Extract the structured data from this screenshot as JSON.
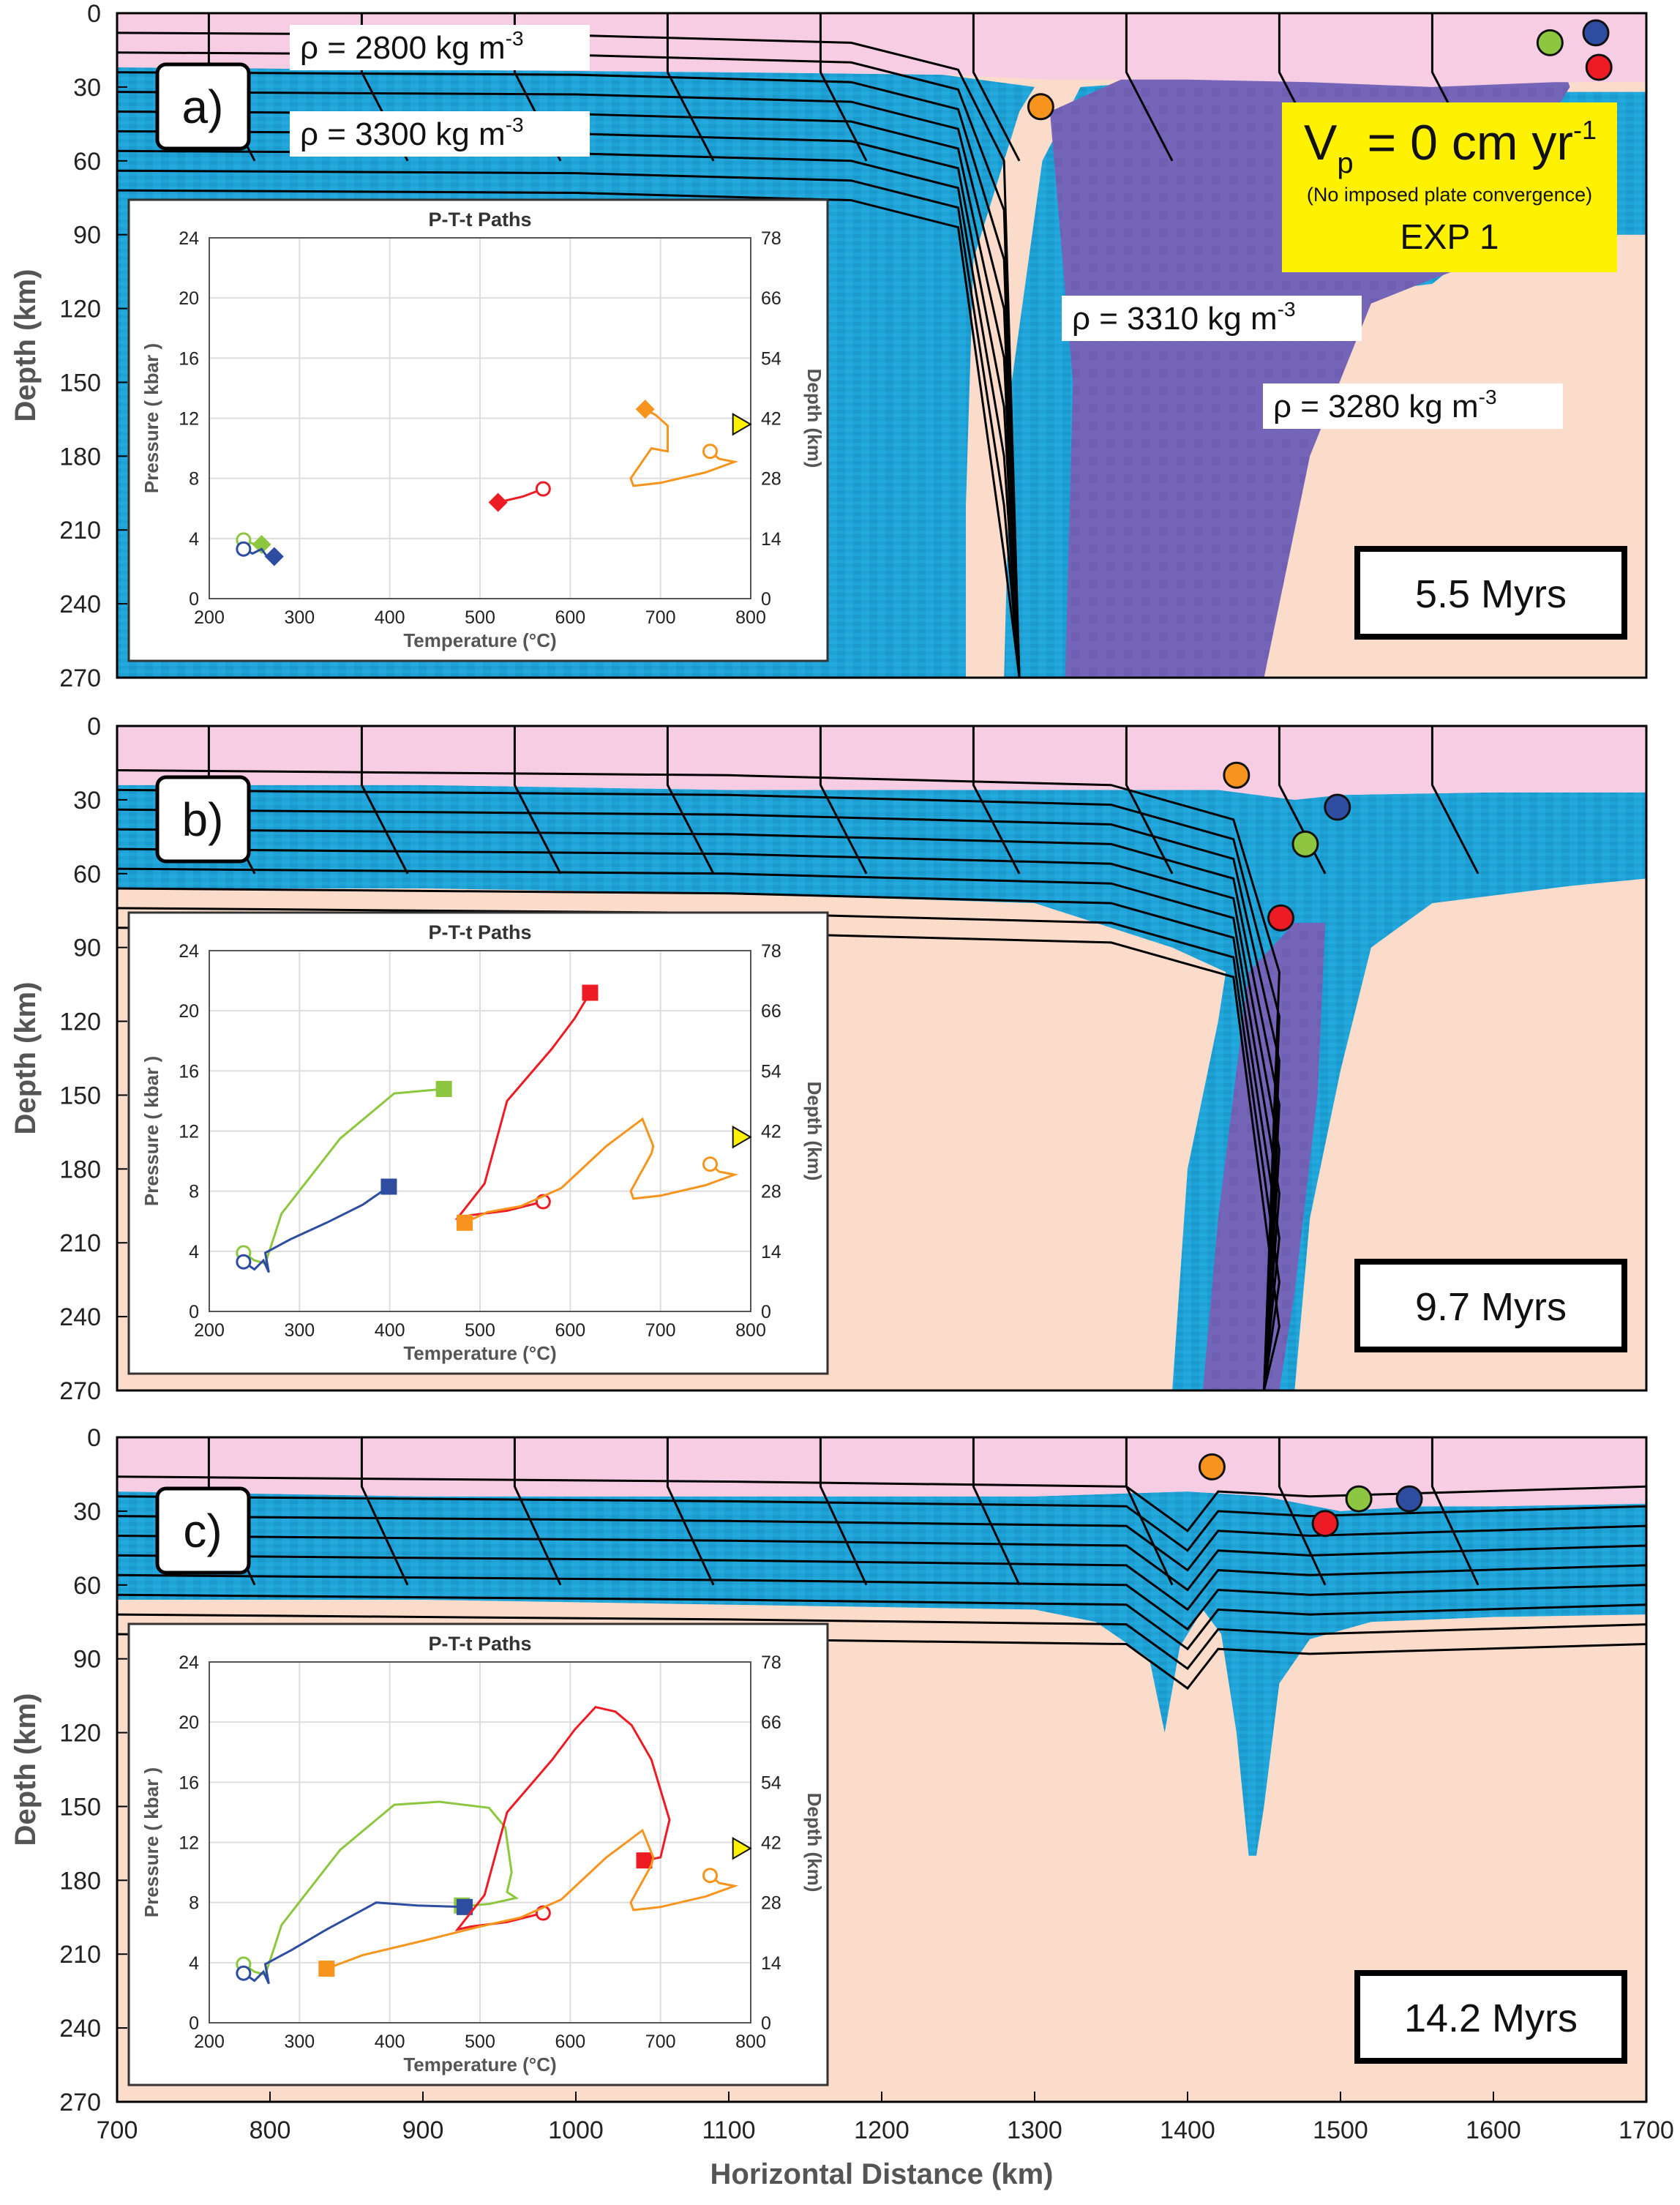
{
  "colors": {
    "upper_crust": "#f7cde4",
    "lithosphere": "#1fa2d6",
    "asthenosphere": "#fbdccb",
    "slab": "#7565b8",
    "weak_zone": "#e8247c",
    "highlight_box": "#fff200",
    "marker_orange": "#f7941d",
    "marker_red": "#ed1c24",
    "marker_green": "#8dc63f",
    "marker_blue": "#2e4da0"
  },
  "figure": {
    "x_axis_label": "Horizontal Distance (km)",
    "y_axis_label": "Depth (km)",
    "x_ticks": [
      "700",
      "800",
      "900",
      "1000",
      "1100",
      "1200",
      "1300",
      "1400",
      "1500",
      "1600",
      "1700"
    ],
    "y_ticks": [
      "0",
      "30",
      "60",
      "90",
      "120",
      "150",
      "180",
      "210",
      "240",
      "270"
    ]
  },
  "panels": [
    {
      "id": "a",
      "label": "a)",
      "time_label": "5.5 Myrs",
      "density_labels": [
        {
          "id": "upper-crust",
          "text": "ρ = 2800 kg m",
          "exp": "-3"
        },
        {
          "id": "lithosphere",
          "text": "ρ = 3300 kg m",
          "exp": "-3"
        },
        {
          "id": "slab",
          "text": "ρ = 3310 kg m",
          "exp": "-3"
        },
        {
          "id": "mantle",
          "text": "ρ = 3280 kg m",
          "exp": "-3"
        }
      ],
      "velocity": {
        "prefix": "V",
        "subscript": "p",
        "text": " = 0 cm yr",
        "exp": "-1",
        "note": "(No imposed plate convergence)",
        "exp_label": "EXP 1"
      },
      "markers": [
        {
          "color": "orange",
          "x_km": 1304,
          "depth_km": 38
        },
        {
          "color": "green",
          "x_km": 1637,
          "depth_km": 12
        },
        {
          "color": "blue",
          "x_km": 1667,
          "depth_km": 8
        },
        {
          "color": "red",
          "x_km": 1669,
          "depth_km": 22
        }
      ]
    },
    {
      "id": "b",
      "label": "b)",
      "time_label": "9.7 Myrs",
      "markers": [
        {
          "color": "orange",
          "x_km": 1432,
          "depth_km": 20
        },
        {
          "color": "blue",
          "x_km": 1498,
          "depth_km": 33
        },
        {
          "color": "green",
          "x_km": 1477,
          "depth_km": 48
        },
        {
          "color": "red",
          "x_km": 1461,
          "depth_km": 78
        }
      ]
    },
    {
      "id": "c",
      "label": "c)",
      "time_label": "14.2 Myrs",
      "markers": [
        {
          "color": "orange",
          "x_km": 1416,
          "depth_km": 12
        },
        {
          "color": "green",
          "x_km": 1512,
          "depth_km": 25
        },
        {
          "color": "blue",
          "x_km": 1545,
          "depth_km": 25
        },
        {
          "color": "red",
          "x_km": 1490,
          "depth_km": 35
        }
      ]
    }
  ],
  "chart_data": {
    "type": "line",
    "inset_title": "P-T-t Paths",
    "xlabel": "Temperature (°C)",
    "ylabel": "Pressure ( kbar )",
    "ylabel_right": "Depth (km)",
    "xlim": [
      200,
      800
    ],
    "ylim": [
      0,
      24
    ],
    "y2lim": [
      0,
      78
    ],
    "x_ticks": [
      "200",
      "300",
      "400",
      "500",
      "600",
      "700",
      "800"
    ],
    "y_ticks": [
      "0",
      "4",
      "8",
      "12",
      "16",
      "20",
      "24"
    ],
    "y2_ticks": [
      "0",
      "14",
      "28",
      "42",
      "54",
      "66",
      "78"
    ],
    "reference_marker": {
      "shape": "triangle",
      "color": "#fff200",
      "temperature": 790,
      "pressure": 11.6
    },
    "insets": [
      {
        "panel": "a",
        "series": [
          {
            "color": "green",
            "end_shape": "diamond",
            "points": [
              [
                238,
                3.9
              ],
              [
                246,
                3.7
              ],
              [
                252,
                3.6
              ],
              [
                258,
                3.6
              ]
            ]
          },
          {
            "color": "blue",
            "end_shape": "diamond",
            "points": [
              [
                238,
                3.3
              ],
              [
                248,
                3.0
              ],
              [
                258,
                3.3
              ],
              [
                264,
                2.8
              ],
              [
                272,
                2.8
              ]
            ]
          },
          {
            "color": "red",
            "end_shape": "diamond",
            "points": [
              [
                570,
                7.3
              ],
              [
                548,
                6.8
              ],
              [
                520,
                6.4
              ]
            ]
          },
          {
            "color": "orange",
            "end_shape": "diamond",
            "points": [
              [
                755,
                9.8
              ],
              [
                765,
                9.3
              ],
              [
                782,
                9.1
              ],
              [
                750,
                8.4
              ],
              [
                700,
                7.7
              ],
              [
                670,
                7.5
              ],
              [
                667,
                8.0
              ],
              [
                690,
                10.0
              ],
              [
                708,
                9.8
              ],
              [
                708,
                11.5
              ],
              [
                695,
                12.2
              ],
              [
                683,
                12.6
              ]
            ]
          }
        ]
      },
      {
        "panel": "b",
        "series": [
          {
            "color": "green",
            "end_shape": "square",
            "points": [
              [
                238,
                3.9
              ],
              [
                250,
                3.4
              ],
              [
                262,
                3.2
              ],
              [
                272,
                5.0
              ],
              [
                280,
                6.5
              ],
              [
                345,
                11.5
              ],
              [
                405,
                14.5
              ],
              [
                460,
                14.8
              ]
            ]
          },
          {
            "color": "blue",
            "end_shape": "square",
            "points": [
              [
                238,
                3.3
              ],
              [
                250,
                2.8
              ],
              [
                260,
                3.4
              ],
              [
                266,
                2.6
              ],
              [
                262,
                3.9
              ],
              [
                290,
                4.8
              ],
              [
                330,
                5.9
              ],
              [
                370,
                7.1
              ],
              [
                399,
                8.3
              ]
            ]
          },
          {
            "color": "red",
            "end_shape": "square",
            "points": [
              [
                570,
                7.3
              ],
              [
                530,
                6.7
              ],
              [
                490,
                6.4
              ],
              [
                475,
                6.2
              ],
              [
                505,
                8.5
              ],
              [
                530,
                14.0
              ],
              [
                580,
                17.5
              ],
              [
                605,
                19.5
              ],
              [
                622,
                21.2
              ]
            ]
          },
          {
            "color": "orange",
            "end_shape": "square",
            "points": [
              [
                755,
                9.8
              ],
              [
                765,
                9.3
              ],
              [
                782,
                9.1
              ],
              [
                750,
                8.4
              ],
              [
                700,
                7.7
              ],
              [
                670,
                7.5
              ],
              [
                667,
                8.0
              ],
              [
                690,
                10.5
              ],
              [
                692,
                11.0
              ],
              [
                680,
                12.8
              ],
              [
                640,
                11.0
              ],
              [
                590,
                8.2
              ],
              [
                545,
                7.0
              ],
              [
                508,
                6.6
              ],
              [
                483,
                5.9
              ]
            ]
          }
        ]
      },
      {
        "panel": "c",
        "series": [
          {
            "color": "green",
            "end_shape": "square",
            "points": [
              [
                238,
                3.9
              ],
              [
                250,
                3.4
              ],
              [
                262,
                3.2
              ],
              [
                272,
                5.0
              ],
              [
                280,
                6.5
              ],
              [
                345,
                11.5
              ],
              [
                405,
                14.5
              ],
              [
                455,
                14.7
              ],
              [
                510,
                14.3
              ],
              [
                528,
                13.0
              ],
              [
                535,
                10.0
              ],
              [
                530,
                8.7
              ],
              [
                540,
                8.3
              ],
              [
                510,
                7.9
              ],
              [
                490,
                7.8
              ],
              [
                480,
                7.8
              ]
            ]
          },
          {
            "color": "blue",
            "end_shape": "square",
            "points": [
              [
                238,
                3.3
              ],
              [
                250,
                2.8
              ],
              [
                260,
                3.4
              ],
              [
                266,
                2.6
              ],
              [
                262,
                3.9
              ],
              [
                290,
                4.8
              ],
              [
                330,
                6.2
              ],
              [
                385,
                8.0
              ],
              [
                430,
                7.8
              ],
              [
                483,
                7.7
              ]
            ]
          },
          {
            "color": "red",
            "end_shape": "square",
            "points": [
              [
                570,
                7.3
              ],
              [
                530,
                6.7
              ],
              [
                490,
                6.4
              ],
              [
                475,
                6.2
              ],
              [
                505,
                8.5
              ],
              [
                530,
                14.0
              ],
              [
                580,
                17.5
              ],
              [
                605,
                19.5
              ],
              [
                628,
                21.0
              ],
              [
                650,
                20.7
              ],
              [
                668,
                19.8
              ],
              [
                690,
                17.5
              ],
              [
                710,
                13.5
              ],
              [
                700,
                11.0
              ],
              [
                682,
                10.8
              ]
            ]
          },
          {
            "color": "orange",
            "end_shape": "square",
            "points": [
              [
                755,
                9.8
              ],
              [
                765,
                9.3
              ],
              [
                782,
                9.1
              ],
              [
                750,
                8.4
              ],
              [
                700,
                7.7
              ],
              [
                670,
                7.5
              ],
              [
                667,
                8.0
              ],
              [
                690,
                10.5
              ],
              [
                692,
                11.0
              ],
              [
                680,
                12.8
              ],
              [
                640,
                11.0
              ],
              [
                590,
                8.2
              ],
              [
                545,
                7.0
              ],
              [
                500,
                6.4
              ],
              [
                440,
                5.5
              ],
              [
                370,
                4.5
              ],
              [
                330,
                3.6
              ]
            ]
          }
        ]
      }
    ]
  }
}
